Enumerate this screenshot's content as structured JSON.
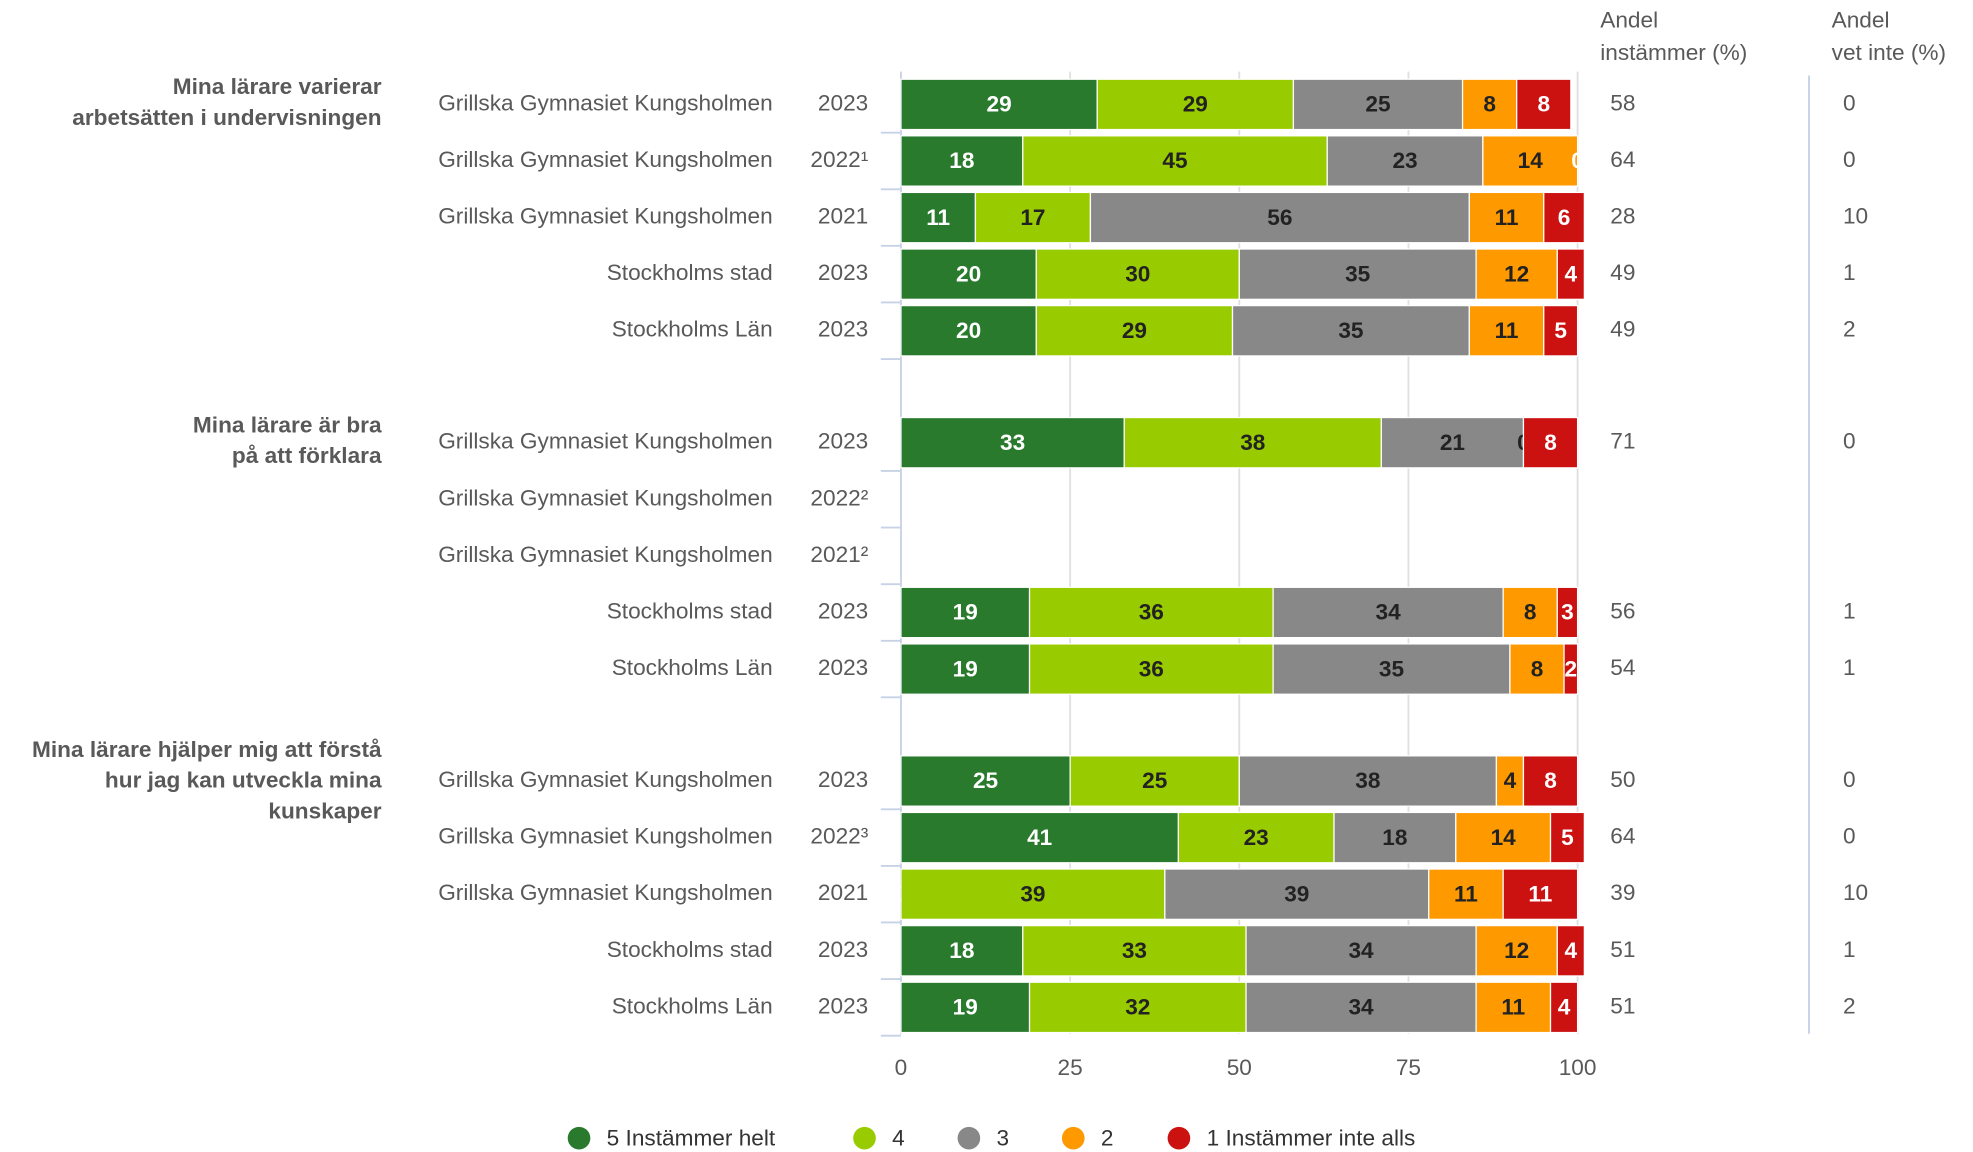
{
  "chart_data": {
    "type": "stacked-bar-horizontal",
    "group_labels": [
      [
        "Mina lärare varierar",
        "arbetsätten i undervisningen"
      ],
      null,
      null,
      null,
      null,
      [
        "Mina lärare är bra",
        "på att förklara"
      ],
      null,
      null,
      null,
      null,
      [
        "Mina lärare hjälper mig att förstå",
        "hur jag kan utveckla mina",
        "kunskaper"
      ],
      null,
      null,
      null,
      null
    ],
    "categories": [
      "Grillska Gymnasiet Kungsholmen",
      "Grillska Gymnasiet Kungsholmen",
      "Grillska Gymnasiet Kungsholmen",
      "Stockholms stad",
      "Stockholms Län",
      "Grillska Gymnasiet Kungsholmen",
      "Grillska Gymnasiet Kungsholmen",
      "Grillska Gymnasiet Kungsholmen",
      "Stockholms stad",
      "Stockholms Län",
      "Grillska Gymnasiet Kungsholmen",
      "Grillska Gymnasiet Kungsholmen",
      "Grillska Gymnasiet Kungsholmen",
      "Stockholms stad",
      "Stockholms Län"
    ],
    "years": [
      "2023",
      "2022¹",
      "2021",
      "2023",
      "2023",
      "2023",
      "2022²",
      "2021²",
      "2023",
      "2023",
      "2023",
      "2022³",
      "2021",
      "2023",
      "2023"
    ],
    "series": [
      {
        "name": "5 Instämmer helt",
        "color": "#2a7a2e",
        "label_color": "#ffffff",
        "values": [
          29,
          18,
          11,
          20,
          20,
          33,
          null,
          null,
          19,
          19,
          25,
          41,
          0,
          18,
          19
        ]
      },
      {
        "name": "4",
        "color": "#99cc00",
        "label_color": "#222222",
        "values": [
          29,
          45,
          17,
          30,
          29,
          38,
          null,
          null,
          36,
          36,
          25,
          23,
          39,
          33,
          32
        ]
      },
      {
        "name": "3",
        "color": "#888888",
        "label_color": "#222222",
        "values": [
          25,
          23,
          56,
          35,
          35,
          21,
          null,
          null,
          34,
          35,
          38,
          18,
          39,
          34,
          34
        ]
      },
      {
        "name": "2",
        "color": "#ff9900",
        "label_color": "#222222",
        "values": [
          8,
          14,
          11,
          12,
          11,
          0,
          null,
          null,
          8,
          8,
          4,
          14,
          11,
          12,
          11
        ]
      },
      {
        "name": "1 Instämmer inte alls",
        "color": "#cc1111",
        "label_color": "#ffffff",
        "values": [
          8,
          0,
          6,
          4,
          5,
          8,
          null,
          null,
          3,
          2,
          8,
          5,
          11,
          4,
          4
        ]
      }
    ],
    "columns": [
      {
        "header": [
          "Andel",
          "instämmer (%)"
        ],
        "values": [
          58,
          64,
          28,
          49,
          49,
          71,
          null,
          null,
          56,
          54,
          50,
          64,
          39,
          51,
          51
        ]
      },
      {
        "header": [
          "Andel",
          "vet inte (%)"
        ],
        "values": [
          0,
          0,
          10,
          1,
          2,
          0,
          null,
          null,
          1,
          1,
          0,
          0,
          10,
          1,
          2
        ]
      }
    ],
    "xlim": [
      0,
      100
    ],
    "xticks": [
      0,
      25,
      50,
      75,
      100
    ],
    "grid": true,
    "legend": "bottom"
  }
}
